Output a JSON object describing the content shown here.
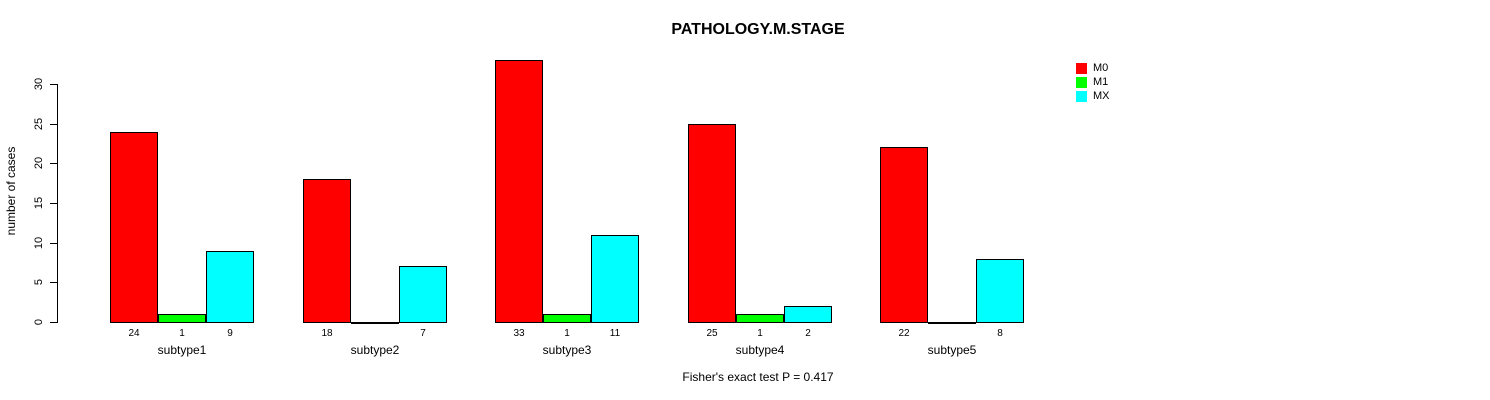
{
  "chart_data": {
    "type": "bar",
    "title": "PATHOLOGY.M.STAGE",
    "ylabel": "number of cases",
    "xlabel": "",
    "categories": [
      "subtype1",
      "subtype2",
      "subtype3",
      "subtype4",
      "subtype5"
    ],
    "series": [
      {
        "name": "M0",
        "color": "#ff0000",
        "values": [
          24,
          18,
          33,
          25,
          22
        ]
      },
      {
        "name": "M1",
        "color": "#00ff00",
        "values": [
          1,
          0,
          1,
          1,
          0
        ]
      },
      {
        "name": "MX",
        "color": "#00ffff",
        "values": [
          9,
          7,
          11,
          2,
          8
        ]
      }
    ],
    "y_ticks": [
      0,
      5,
      10,
      15,
      20,
      25,
      30
    ],
    "axis_range": [
      0,
      33
    ],
    "grid": false,
    "legend_position": "top-right",
    "value_labels": "shown under each nonzero bar",
    "annotation": "Fisher's exact test P = 0.417"
  },
  "colors": {
    "background": "#ffffff",
    "axis": "#000000",
    "text": "#000000"
  }
}
